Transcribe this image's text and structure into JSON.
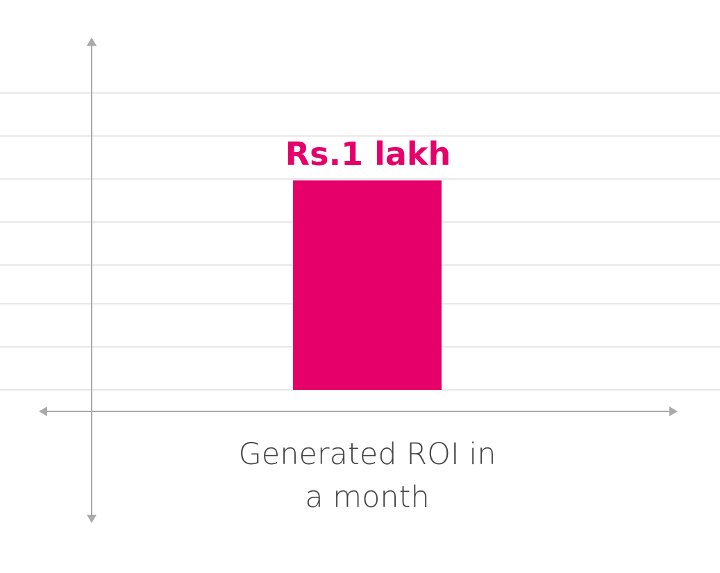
{
  "chart_data": {
    "type": "bar",
    "categories": [
      "Generated ROI in a month"
    ],
    "values": [
      1
    ],
    "value_labels": [
      "Rs.1 lakh"
    ],
    "color": "#e5006a",
    "ylim": [
      0,
      1.6
    ]
  }
}
